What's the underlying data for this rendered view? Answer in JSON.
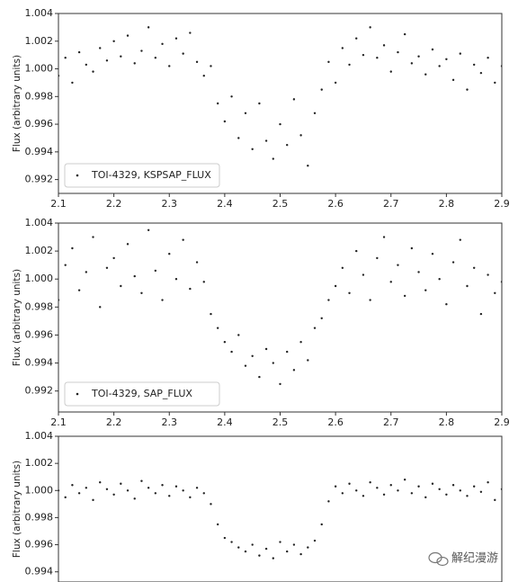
{
  "chart_data": [
    {
      "type": "scatter",
      "ylabel": "Flux (arbitrary units)",
      "xlim": [
        2.1,
        2.9
      ],
      "ylim": [
        0.991,
        1.004
      ],
      "xticks": [
        2.1,
        2.2,
        2.3,
        2.4,
        2.5,
        2.6,
        2.7,
        2.8,
        2.9
      ],
      "yticks": [
        0.992,
        0.994,
        0.996,
        0.998,
        {
          "value": 1,
          "label": "1.000"
        },
        1.002,
        1.004
      ],
      "legend": "lower left",
      "series": [
        {
          "name": "TOI-4329, KSPSAP_FLUX",
          "color": "#222222",
          "x": [
            2.1,
            2.1125,
            2.125,
            2.1375,
            2.15,
            2.1625,
            2.175,
            2.1875,
            2.2,
            2.2125,
            2.225,
            2.2375,
            2.25,
            2.2625,
            2.275,
            2.2875,
            2.3,
            2.3125,
            2.325,
            2.3375,
            2.35,
            2.3625,
            2.375,
            2.3875,
            2.4,
            2.4125,
            2.425,
            2.4375,
            2.45,
            2.4625,
            2.475,
            2.4875,
            2.5,
            2.5125,
            2.525,
            2.5375,
            2.55,
            2.5625,
            2.575,
            2.5875,
            2.6,
            2.6125,
            2.625,
            2.6375,
            2.65,
            2.6625,
            2.675,
            2.6875,
            2.7,
            2.7125,
            2.725,
            2.7375,
            2.75,
            2.7625,
            2.775,
            2.7875,
            2.8,
            2.8125,
            2.825,
            2.8375,
            2.85,
            2.8625,
            2.875,
            2.8875,
            2.9
          ],
          "values": [
            0.9995,
            1.0008,
            0.999,
            1.0012,
            1.0003,
            0.9998,
            1.0015,
            1.0006,
            1.002,
            1.0009,
            1.0024,
            1.0004,
            1.0013,
            1.003,
            1.0008,
            1.0018,
            1.0002,
            1.0022,
            1.0011,
            1.0026,
            1.0005,
            0.9995,
            1.0002,
            0.9975,
            0.9962,
            0.998,
            0.995,
            0.9968,
            0.9942,
            0.9975,
            0.9948,
            0.9935,
            0.996,
            0.9945,
            0.9978,
            0.9952,
            0.993,
            0.9968,
            0.9985,
            1.0005,
            0.999,
            1.0015,
            1.0003,
            1.0022,
            1.001,
            1.003,
            1.0008,
            1.0017,
            0.9998,
            1.0012,
            1.0025,
            1.0004,
            1.0009,
            0.9996,
            1.0014,
            1.0002,
            1.0007,
            0.9992,
            1.0011,
            0.9985,
            1.0003,
            0.9997,
            1.0008,
            0.999,
            1.0002
          ]
        }
      ]
    },
    {
      "type": "scatter",
      "ylabel": "Flux (arbitrary units)",
      "xlim": [
        2.1,
        2.9
      ],
      "ylim": [
        0.9905,
        1.004
      ],
      "xticks": [
        2.1,
        2.2,
        2.3,
        2.4,
        2.5,
        2.6,
        2.7,
        2.8,
        2.9
      ],
      "yticks": [
        0.992,
        0.994,
        0.996,
        0.998,
        {
          "value": 1,
          "label": "1.000"
        },
        1.002,
        1.004
      ],
      "legend": "lower left",
      "series": [
        {
          "name": "TOI-4329, SAP_FLUX",
          "color": "#222222",
          "x": [
            2.1,
            2.1125,
            2.125,
            2.1375,
            2.15,
            2.1625,
            2.175,
            2.1875,
            2.2,
            2.2125,
            2.225,
            2.2375,
            2.25,
            2.2625,
            2.275,
            2.2875,
            2.3,
            2.3125,
            2.325,
            2.3375,
            2.35,
            2.3625,
            2.375,
            2.3875,
            2.4,
            2.4125,
            2.425,
            2.4375,
            2.45,
            2.4625,
            2.475,
            2.4875,
            2.5,
            2.5125,
            2.525,
            2.5375,
            2.55,
            2.5625,
            2.575,
            2.5875,
            2.6,
            2.6125,
            2.625,
            2.6375,
            2.65,
            2.6625,
            2.675,
            2.6875,
            2.7,
            2.7125,
            2.725,
            2.7375,
            2.75,
            2.7625,
            2.775,
            2.7875,
            2.8,
            2.8125,
            2.825,
            2.8375,
            2.85,
            2.8625,
            2.875,
            2.8875,
            2.9
          ],
          "values": [
            0.9985,
            1.001,
            1.0022,
            0.9992,
            1.0005,
            1.003,
            0.998,
            1.0008,
            1.0015,
            0.9995,
            1.0025,
            1.0002,
            0.999,
            1.0035,
            1.0006,
            0.9985,
            1.0018,
            1.0,
            1.0028,
            0.9993,
            1.0012,
            0.9998,
            0.9975,
            0.9965,
            0.9955,
            0.9948,
            0.996,
            0.9938,
            0.9945,
            0.993,
            0.995,
            0.994,
            0.9925,
            0.9948,
            0.9935,
            0.9955,
            0.9942,
            0.9965,
            0.9972,
            0.9985,
            0.9995,
            1.0008,
            0.999,
            1.002,
            1.0003,
            0.9985,
            1.0015,
            1.003,
            0.9998,
            1.001,
            0.9988,
            1.0022,
            1.0005,
            0.9992,
            1.0018,
            1.0,
            0.9982,
            1.0012,
            1.0028,
            0.9995,
            1.0008,
            0.9975,
            1.0003,
            0.999,
            0.9998
          ]
        }
      ]
    },
    {
      "type": "scatter",
      "ylabel": "Flux (arbitrary units)",
      "xlim": [
        2.1,
        2.9
      ],
      "ylim": [
        0.99325,
        1.004
      ],
      "yticks": [
        0.994,
        0.996,
        0.998,
        {
          "value": 1,
          "label": "1.000"
        },
        1.002,
        1.004
      ],
      "series": [
        {
          "color": "#222222",
          "x": [
            2.1,
            2.1125,
            2.125,
            2.1375,
            2.15,
            2.1625,
            2.175,
            2.1875,
            2.2,
            2.2125,
            2.225,
            2.2375,
            2.25,
            2.2625,
            2.275,
            2.2875,
            2.3,
            2.3125,
            2.325,
            2.3375,
            2.35,
            2.3625,
            2.375,
            2.3875,
            2.4,
            2.4125,
            2.425,
            2.4375,
            2.45,
            2.4625,
            2.475,
            2.4875,
            2.5,
            2.5125,
            2.525,
            2.5375,
            2.55,
            2.5625,
            2.575,
            2.5875,
            2.6,
            2.6125,
            2.625,
            2.6375,
            2.65,
            2.6625,
            2.675,
            2.6875,
            2.7,
            2.7125,
            2.725,
            2.7375,
            2.75,
            2.7625,
            2.775,
            2.7875,
            2.8,
            2.8125,
            2.825,
            2.8375,
            2.85,
            2.8625,
            2.875,
            2.8875,
            2.9
          ],
          "values": [
            1.0,
            0.9995,
            1.0004,
            0.9998,
            1.0002,
            0.9993,
            1.0006,
            1.0001,
            0.9997,
            1.0005,
            1.0,
            0.9994,
            1.0007,
            1.0002,
            0.9998,
            1.0004,
            0.9996,
            1.0003,
            1.0,
            0.9995,
            1.0002,
            0.9998,
            0.999,
            0.9975,
            0.9965,
            0.9962,
            0.9958,
            0.9955,
            0.996,
            0.9952,
            0.9957,
            0.995,
            0.9962,
            0.9955,
            0.996,
            0.9953,
            0.9958,
            0.9963,
            0.9975,
            0.9992,
            1.0003,
            0.9998,
            1.0005,
            1.0,
            0.9996,
            1.0006,
            1.0002,
            0.9997,
            1.0004,
            1.0,
            1.0008,
            0.9998,
            1.0003,
            0.9995,
            1.0005,
            1.0001,
            0.9997,
            1.0004,
            1.0,
            0.9996,
            1.0003,
            0.9999,
            1.0006,
            0.9993,
            1.0001
          ]
        }
      ]
    }
  ],
  "watermark": "解纪漫游"
}
